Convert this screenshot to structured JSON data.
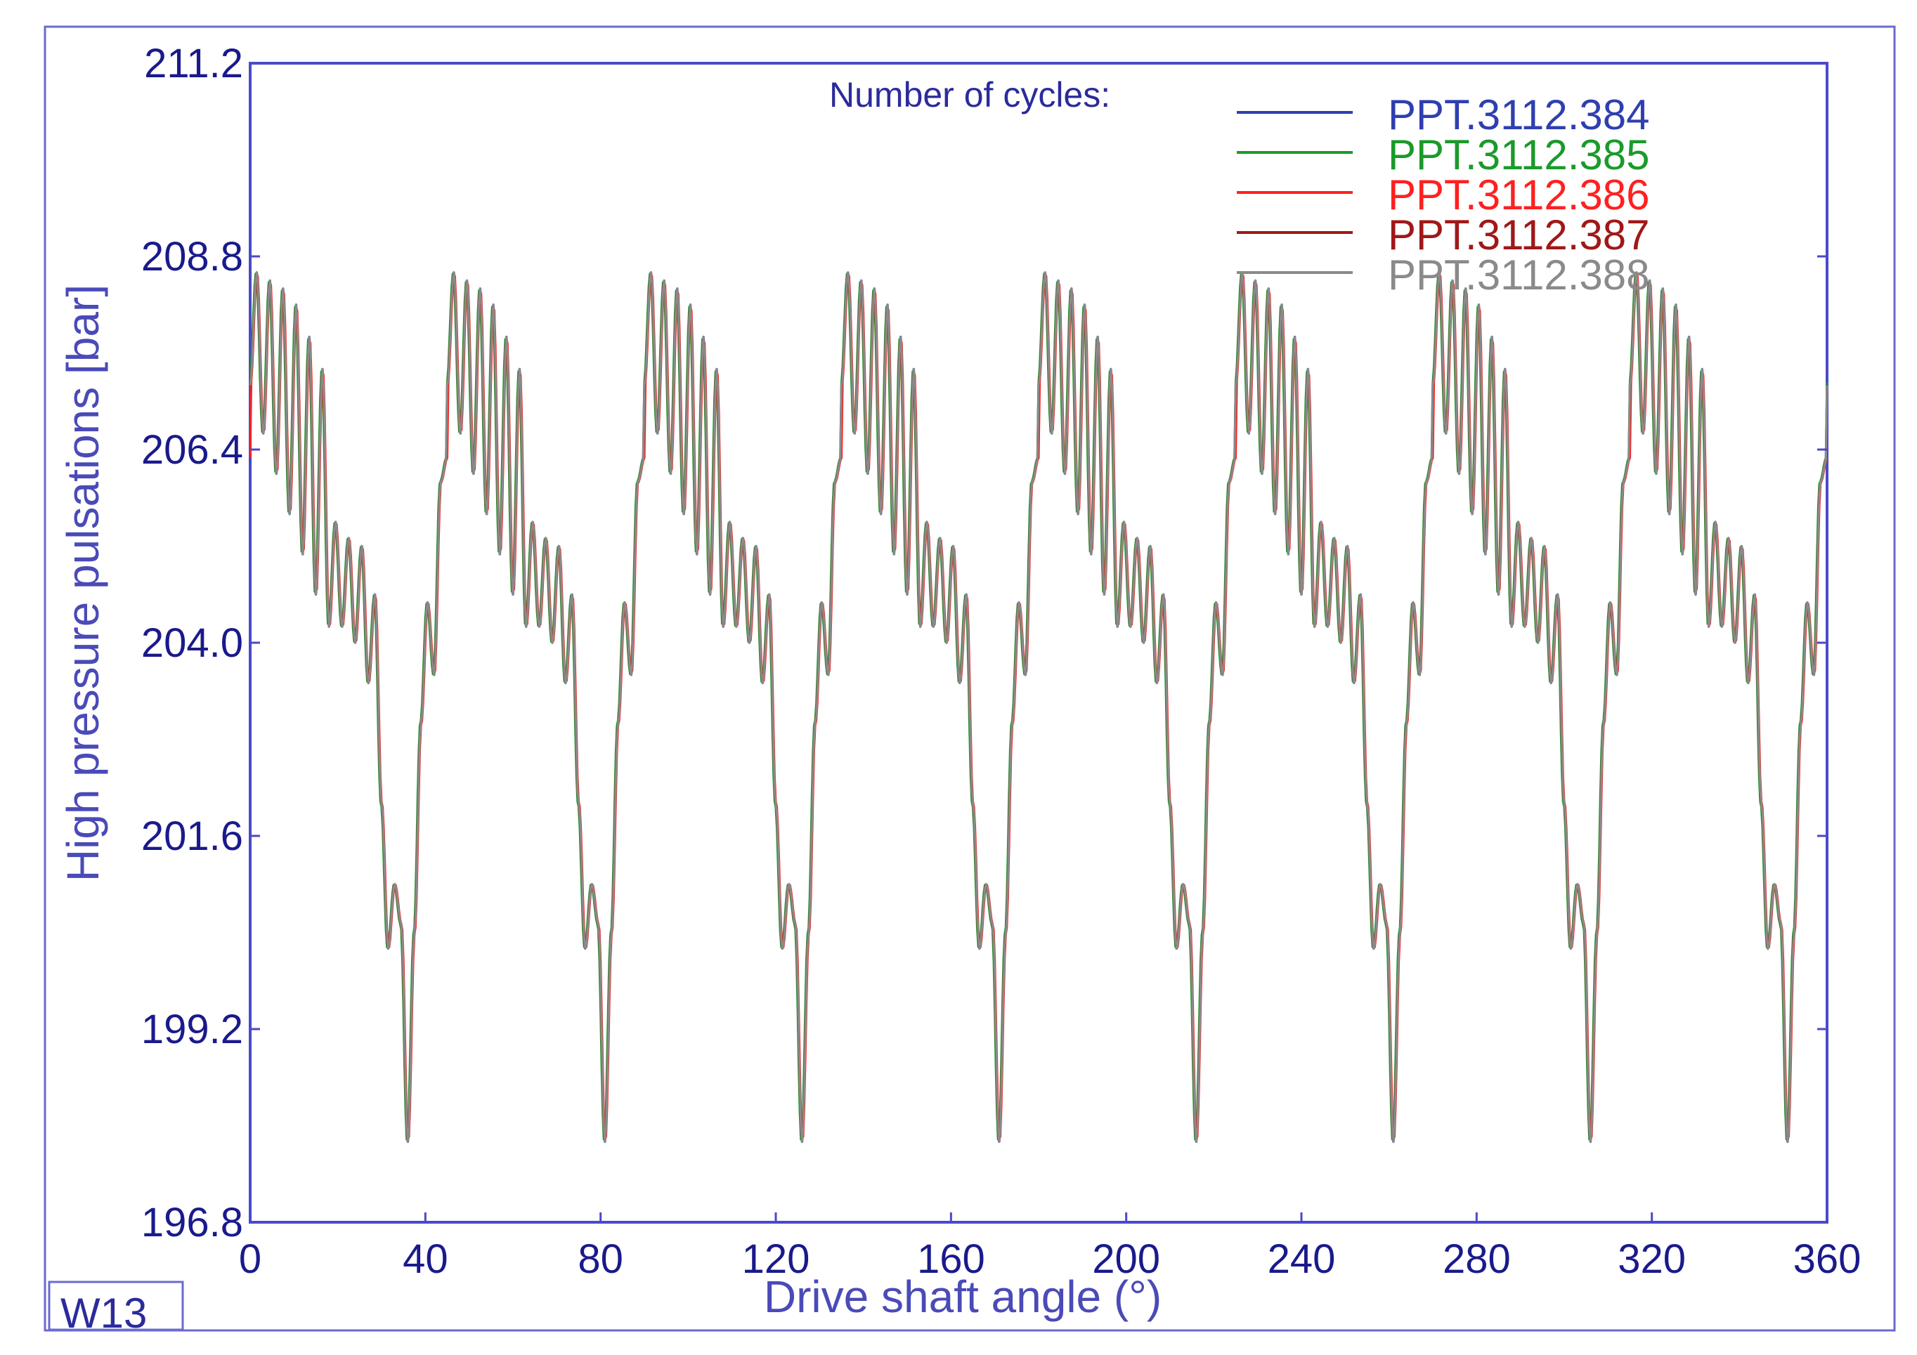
{
  "chart_data": {
    "type": "line",
    "title": "",
    "xlabel": "Drive shaft angle (°)",
    "ylabel": "High pressure pulsations [bar]",
    "xlim": [
      0,
      360
    ],
    "ylim": [
      196.8,
      211.2
    ],
    "x_ticks": [
      0,
      40,
      80,
      120,
      160,
      200,
      240,
      280,
      320,
      360
    ],
    "x_tick_labels": [
      "0",
      "40",
      "80",
      "120",
      "160",
      "200",
      "240",
      "280",
      "320",
      "360"
    ],
    "y_ticks": [
      196.8,
      199.2,
      201.6,
      204.0,
      206.4,
      208.8,
      211.2
    ],
    "y_tick_labels": [
      "196.8",
      "199.2",
      "201.6",
      "204.0",
      "206.4",
      "208.8",
      "211.2"
    ],
    "grid": false,
    "legend_title": "Number of cycles:",
    "legend_position": "top-right",
    "corner_label": "W13",
    "series_colors": [
      "#2f3fb0",
      "#1a9a2a",
      "#ff2020",
      "#a01818",
      "#8a8a8a"
    ],
    "pattern": {
      "description": "8 periodic pressure cycles over 360°, period 45°; curves of all 5 cycles overlap almost exactly",
      "period_deg": 45,
      "points": [
        [
          0,
          207.2
        ],
        [
          1.5,
          208.6
        ],
        [
          3,
          206.6
        ],
        [
          4.5,
          208.5
        ],
        [
          6,
          206.1
        ],
        [
          7.5,
          208.4
        ],
        [
          9,
          205.6
        ],
        [
          10.5,
          208.2
        ],
        [
          12,
          205.1
        ],
        [
          13.5,
          207.8
        ],
        [
          15,
          204.6
        ],
        [
          16.5,
          207.4
        ],
        [
          18,
          204.2
        ],
        [
          19.5,
          205.5
        ],
        [
          21,
          204.2
        ],
        [
          22.5,
          205.3
        ],
        [
          24,
          204.0
        ],
        [
          25.5,
          205.2
        ],
        [
          27,
          203.5
        ],
        [
          28.5,
          204.6
        ],
        [
          30,
          202.0
        ],
        [
          31.5,
          200.2
        ],
        [
          33,
          201.0
        ],
        [
          34.5,
          200.5
        ],
        [
          36,
          197.8
        ],
        [
          37.5,
          200.4
        ],
        [
          39,
          203.0
        ],
        [
          40.5,
          204.5
        ],
        [
          42,
          203.6
        ],
        [
          43.5,
          206.0
        ],
        [
          45,
          206.3
        ]
      ]
    },
    "series": [
      {
        "name": "PPT.3112.384",
        "phase_offset": 0.0
      },
      {
        "name": "PPT.3112.385",
        "phase_offset": 0.15
      },
      {
        "name": "PPT.3112.386",
        "phase_offset": -0.1
      },
      {
        "name": "PPT.3112.387",
        "phase_offset": 0.05
      },
      {
        "name": "PPT.3112.388",
        "phase_offset": 0.0
      }
    ]
  }
}
